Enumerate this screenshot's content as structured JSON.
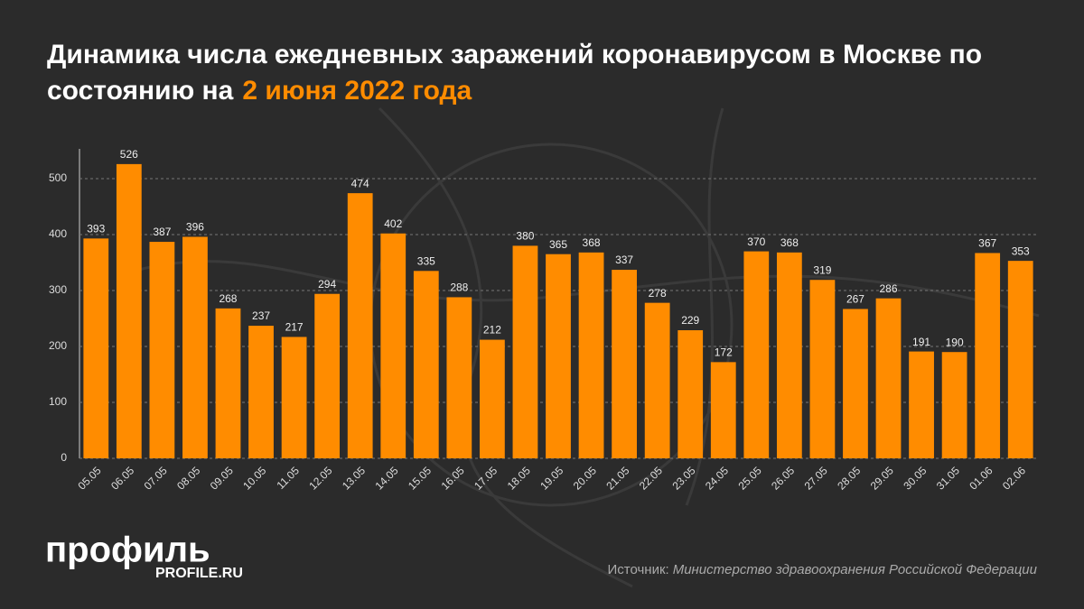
{
  "chart_data": {
    "type": "bar",
    "title": "Динамика числа ежедневных заражений коронавирусом в Москве по состоянию на",
    "title_highlight": "2 июня 2022 года",
    "categories": [
      "05.05",
      "06.05",
      "07.05",
      "08.05",
      "09.05",
      "10.05",
      "11.05",
      "12.05",
      "13.05",
      "14.05",
      "15.05",
      "16.05",
      "17.05",
      "18.05",
      "19.05",
      "20.05",
      "21.05",
      "22.05",
      "23.05",
      "24.05",
      "25.05",
      "26.05",
      "27.05",
      "28.05",
      "29.05",
      "30.05",
      "31.05",
      "01.06",
      "02.06"
    ],
    "values": [
      393,
      526,
      387,
      396,
      268,
      237,
      217,
      294,
      474,
      402,
      335,
      288,
      212,
      380,
      365,
      368,
      337,
      278,
      229,
      172,
      370,
      368,
      319,
      267,
      286,
      191,
      190,
      367,
      353
    ],
    "color": "#ff8c00",
    "ylim": [
      0,
      550
    ],
    "yticks": [
      0,
      100,
      200,
      300,
      400,
      500
    ],
    "grid": true,
    "source_label": "Источник:",
    "source": "Министерство здравоохранения Российской Федерации",
    "logo": "профиль",
    "logo_url": "PROFILE.RU"
  }
}
